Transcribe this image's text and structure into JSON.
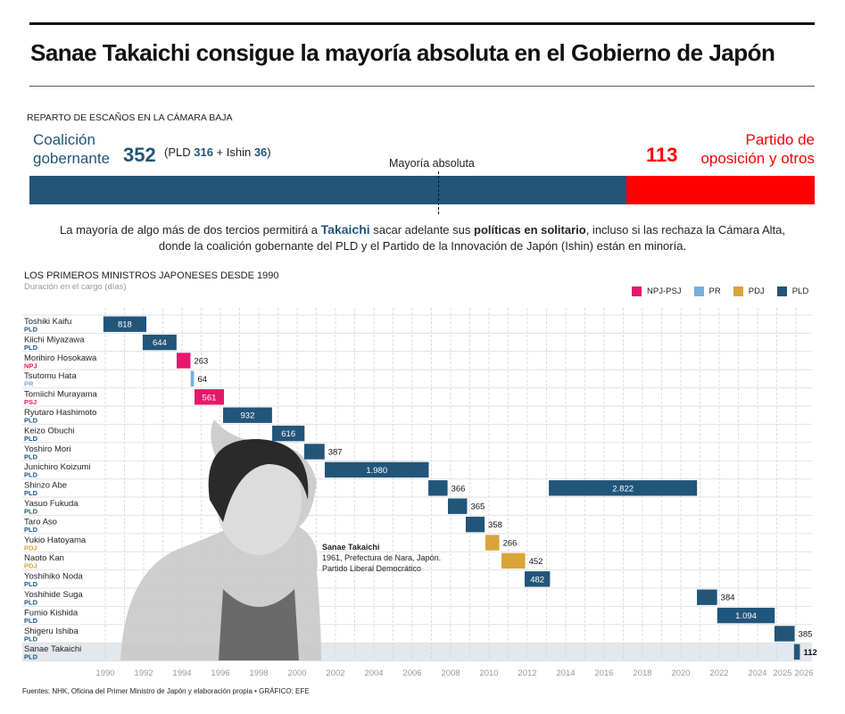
{
  "title": "Sanae Takaichi consigue la mayoría absoluta en el Gobierno de Japón",
  "seats": {
    "section_title": "REPARTO DE ESCAÑOS EN LA CÁMARA BAJA",
    "coalition_label_1": "Coalición",
    "coalition_label_2": "gobernante",
    "coalition_total": "352",
    "breakdown_prefix": "(PLD ",
    "pld": "316",
    "breakdown_mid": " + Ishin ",
    "ishin": "36",
    "breakdown_suffix": ")",
    "opposition_label_1": "Partido de",
    "opposition_label_2": "oposición y otros",
    "opposition_total": "113",
    "majority_label": "Mayoría absoluta",
    "coalition_seats": 352,
    "opposition_seats": 113,
    "coalition_color": "#22557a",
    "opposition_color": "#ff0000"
  },
  "lead": {
    "p1": "La mayoría de algo más de dos tercios permitirá a ",
    "name": "Takaichi",
    "p2": " sacar adelante sus ",
    "bold": "políticas en solitario",
    "p3": ", incluso si las rechaza la Cámara Alta, donde la coalición gobernante del PLD y el Partido de la Innovación de Japón (Ishin) están en minoría."
  },
  "chart_data": {
    "type": "gantt-bar",
    "title": "LOS PRIMEROS MINISTROS JAPONESES DESDE 1990",
    "subtitle": "Duración en el cargo (días)",
    "legend_position": "top-right",
    "legend": [
      {
        "label": "NPJ-PSJ",
        "color": "#e3196b"
      },
      {
        "label": "PR",
        "color": "#7aaedb"
      },
      {
        "label": "PDJ",
        "color": "#d9a43a"
      },
      {
        "label": "PLD",
        "color": "#22557a"
      }
    ],
    "party_colors": {
      "PLD": "#22557a",
      "NPJ": "#e3196b",
      "PSJ": "#e3196b",
      "PR": "#7aaedb",
      "PDJ": "#d9a43a"
    },
    "x_ticks": [
      "1990",
      "1992",
      "1994",
      "1996",
      "1998",
      "2000",
      "2002",
      "2004",
      "2006",
      "2008",
      "2010",
      "2012",
      "2014",
      "2016",
      "2018",
      "2020",
      "2022",
      "2024",
      "2025",
      "2026"
    ],
    "xlim": [
      1990,
      2026
    ],
    "rows": [
      {
        "name": "Toshiki Kaifu",
        "party": "PLD"
      },
      {
        "name": "Kiichi Miyazawa",
        "party": "PLD"
      },
      {
        "name": "Morihiro Hosokawa",
        "party": "NPJ"
      },
      {
        "name": "Tsutomu Hata",
        "party": "PR"
      },
      {
        "name": "Tomiichi Murayama",
        "party": "PSJ"
      },
      {
        "name": "Ryutaro Hashimoto",
        "party": "PLD"
      },
      {
        "name": "Keizo Obuchi",
        "party": "PLD"
      },
      {
        "name": "Yoshiro Mori",
        "party": "PLD"
      },
      {
        "name": "Junichiro Koizumi",
        "party": "PLD"
      },
      {
        "name": "Shinzo Abe",
        "party": "PLD"
      },
      {
        "name": "Yasuo Fukuda",
        "party": "PLD"
      },
      {
        "name": "Taro Aso",
        "party": "PLD"
      },
      {
        "name": "Yukio Hatoyama",
        "party": "PDJ"
      },
      {
        "name": "Naoto Kan",
        "party": "PDJ"
      },
      {
        "name": "Yoshihiko Noda",
        "party": "PLD"
      },
      {
        "name": "Yoshihide Suga",
        "party": "PLD"
      },
      {
        "name": "Fumio Kishida",
        "party": "PLD"
      },
      {
        "name": "Shigeru Ishiba",
        "party": "PLD"
      },
      {
        "name": "Sanae Takaichi",
        "party": "PLD",
        "highlight": true
      }
    ],
    "bars": [
      {
        "row": 0,
        "start": 1989.9,
        "days": 818,
        "label": "818"
      },
      {
        "row": 1,
        "start": 1991.95,
        "days": 644,
        "label": "644"
      },
      {
        "row": 2,
        "start": 1993.72,
        "days": 263,
        "label": "263"
      },
      {
        "row": 3,
        "start": 1994.45,
        "days": 64,
        "label": "64"
      },
      {
        "row": 4,
        "start": 1994.65,
        "days": 561,
        "label": "561"
      },
      {
        "row": 5,
        "start": 1996.14,
        "days": 932,
        "label": "932"
      },
      {
        "row": 6,
        "start": 1998.7,
        "days": 616,
        "label": "616"
      },
      {
        "row": 7,
        "start": 2000.37,
        "days": 387,
        "label": "387"
      },
      {
        "row": 8,
        "start": 2001.44,
        "days": 1980,
        "label": "1.980"
      },
      {
        "row": 9,
        "start": 2006.84,
        "days": 366,
        "label": "366"
      },
      {
        "row": 10,
        "start": 2007.86,
        "days": 365,
        "label": "365"
      },
      {
        "row": 11,
        "start": 2008.79,
        "days": 358,
        "label": "358"
      },
      {
        "row": 12,
        "start": 2009.81,
        "days": 266,
        "label": "266"
      },
      {
        "row": 13,
        "start": 2010.65,
        "days": 452,
        "label": "452"
      },
      {
        "row": 14,
        "start": 2011.86,
        "days": 482,
        "label": "482"
      },
      {
        "row": 9,
        "start": 2013.12,
        "days": 2822,
        "label": "2.822"
      },
      {
        "row": 15,
        "start": 2020.84,
        "days": 384,
        "label": "384"
      },
      {
        "row": 16,
        "start": 2021.9,
        "days": 1094,
        "label": "1.094"
      },
      {
        "row": 17,
        "start": 2024.88,
        "days": 385,
        "label": "385"
      },
      {
        "row": 18,
        "start": 2025.9,
        "days": 112,
        "label": "112"
      }
    ]
  },
  "annotation": {
    "name": "Sanae Takaichi",
    "line1": "1961, Prefectura de Nara, Japón.",
    "line2": "Partido Liberal Democrático"
  },
  "footer": "Fuentes: NHK, Oficina del Primer Ministro de Japón y elaboración propia  • GRÁFICO: EFE"
}
